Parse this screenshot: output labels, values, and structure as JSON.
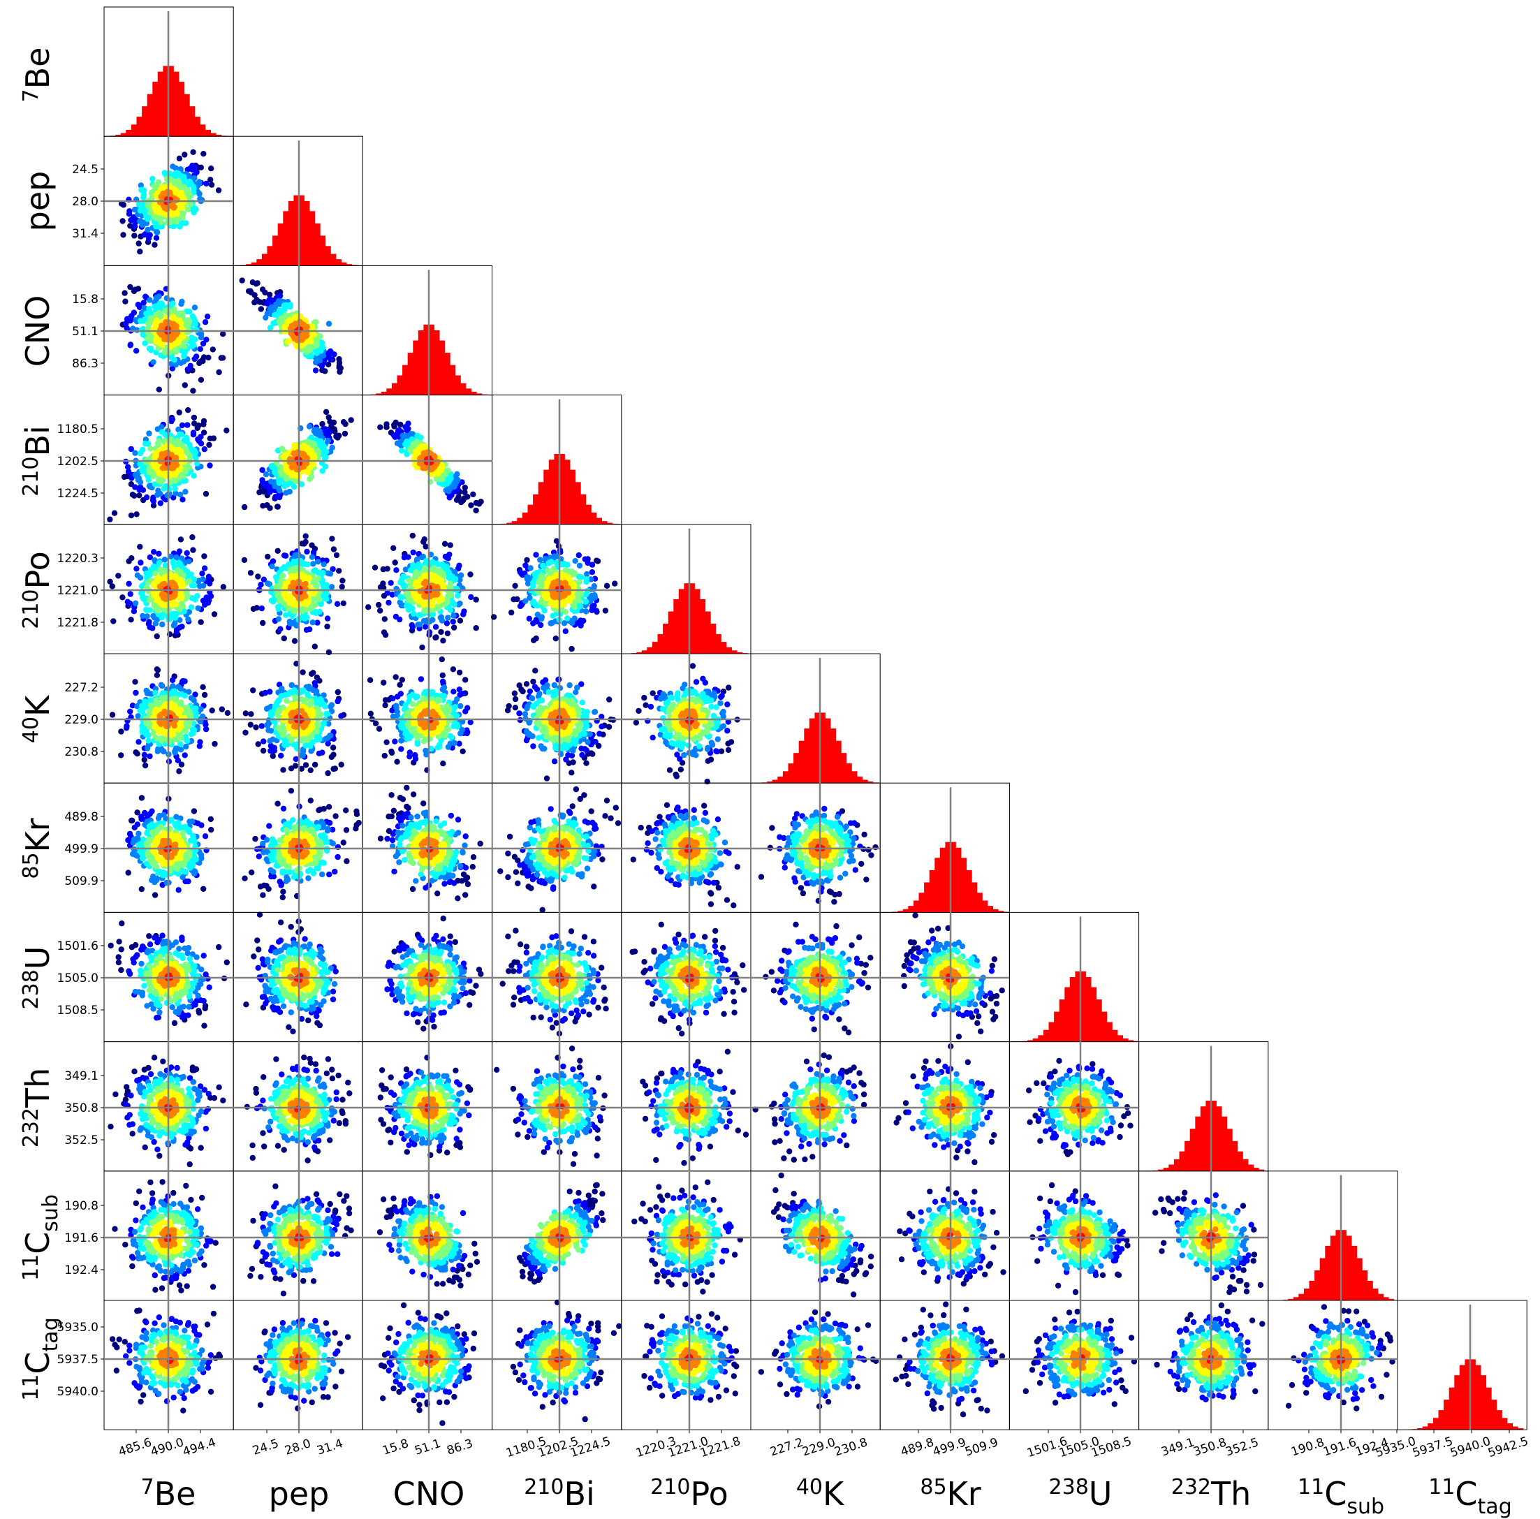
{
  "chart_data": {
    "type": "corner",
    "parameters": [
      {
        "key": "Be7",
        "sup": "7",
        "base": "Be",
        "sub": "",
        "center": 490.0,
        "ticks": [
          "485.6",
          "490.0",
          "494.4"
        ]
      },
      {
        "key": "pep",
        "sup": "",
        "base": "pep",
        "sub": "",
        "center": 28.0,
        "ticks": [
          "24.5",
          "28.0",
          "31.4"
        ]
      },
      {
        "key": "CNO",
        "sup": "",
        "base": "CNO",
        "sub": "",
        "center": 51.1,
        "ticks": [
          "15.8",
          "51.1",
          "86.3"
        ]
      },
      {
        "key": "Bi210",
        "sup": "210",
        "base": "Bi",
        "sub": "",
        "center": 1202.5,
        "ticks": [
          "1180.5",
          "1202.5",
          "1224.5"
        ]
      },
      {
        "key": "Po210",
        "sup": "210",
        "base": "Po",
        "sub": "",
        "center": 1221.0,
        "ticks": [
          "1220.3",
          "1221.0",
          "1221.8"
        ]
      },
      {
        "key": "K40",
        "sup": "40",
        "base": "K",
        "sub": "",
        "center": 229.0,
        "ticks": [
          "227.2",
          "229.0",
          "230.8"
        ]
      },
      {
        "key": "Kr85",
        "sup": "85",
        "base": "Kr",
        "sub": "",
        "center": 499.9,
        "ticks": [
          "489.8",
          "499.9",
          "509.9"
        ]
      },
      {
        "key": "U238",
        "sup": "238",
        "base": "U",
        "sub": "",
        "center": 1505.0,
        "ticks": [
          "1501.6",
          "1505.0",
          "1508.5"
        ]
      },
      {
        "key": "Th232",
        "sup": "232",
        "base": "Th",
        "sub": "",
        "center": 350.8,
        "ticks": [
          "349.1",
          "350.8",
          "352.5"
        ]
      },
      {
        "key": "C11sub",
        "sup": "11",
        "base": "C",
        "sub": "sub",
        "center": 191.6,
        "ticks": [
          "190.8",
          "191.6",
          "192.4"
        ]
      },
      {
        "key": "C11tag",
        "sup": "11",
        "base": "C",
        "sub": "tag",
        "center": 5939.6,
        "ticks": [
          "5935.0",
          "5937.5",
          "5940.0",
          "5942.5"
        ]
      }
    ],
    "correlations": [
      [
        1.0
      ],
      [
        0.45,
        1.0
      ],
      [
        -0.45,
        -0.85,
        1.0
      ],
      [
        0.4,
        0.8,
        -0.93,
        1.0
      ],
      [
        0.0,
        0.0,
        0.0,
        0.0,
        1.0
      ],
      [
        0.0,
        0.0,
        0.0,
        -0.25,
        0.0,
        1.0
      ],
      [
        -0.2,
        0.45,
        -0.5,
        0.4,
        -0.3,
        0.0,
        1.0
      ],
      [
        -0.25,
        -0.15,
        0.0,
        -0.1,
        0.0,
        0.0,
        -0.45,
        1.0
      ],
      [
        0.0,
        0.0,
        0.0,
        0.0,
        0.0,
        0.3,
        0.0,
        0.15,
        1.0
      ],
      [
        0.0,
        0.25,
        -0.45,
        0.7,
        0.0,
        -0.6,
        0.0,
        -0.2,
        -0.45,
        1.0
      ],
      [
        0.0,
        0.0,
        0.0,
        0.0,
        0.0,
        0.0,
        0.0,
        0.0,
        0.0,
        0.3,
        1.0
      ]
    ],
    "histogram_color": "#ff0000",
    "marker_line_color": "#808080",
    "density_colormap": [
      "#00007f",
      "#0000ff",
      "#007fff",
      "#00ffff",
      "#7fff7f",
      "#ffff00",
      "#ff7f00",
      "#ff0000"
    ]
  }
}
